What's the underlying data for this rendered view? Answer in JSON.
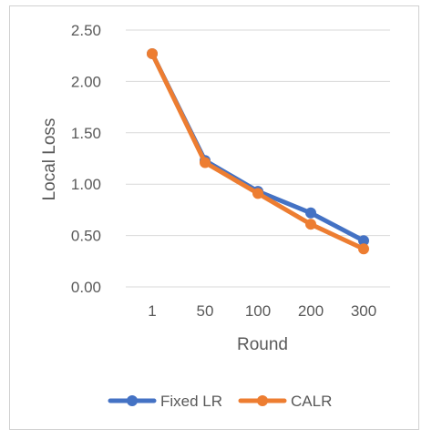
{
  "chart_data": {
    "type": "line",
    "title": "",
    "xlabel": "Round",
    "ylabel": "Local Loss",
    "categories": [
      "1",
      "50",
      "100",
      "200",
      "300"
    ],
    "ylim": [
      0,
      2.5
    ],
    "yticks": [
      "0.00",
      "0.50",
      "1.00",
      "1.50",
      "2.00",
      "2.50"
    ],
    "grid": true,
    "legend_position": "bottom",
    "series": [
      {
        "name": "Fixed LR",
        "color": "#4472C4",
        "values": [
          2.27,
          1.23,
          0.93,
          0.72,
          0.45
        ]
      },
      {
        "name": "CALR",
        "color": "#ED7D31",
        "values": [
          2.27,
          1.21,
          0.91,
          0.61,
          0.37
        ]
      }
    ]
  }
}
